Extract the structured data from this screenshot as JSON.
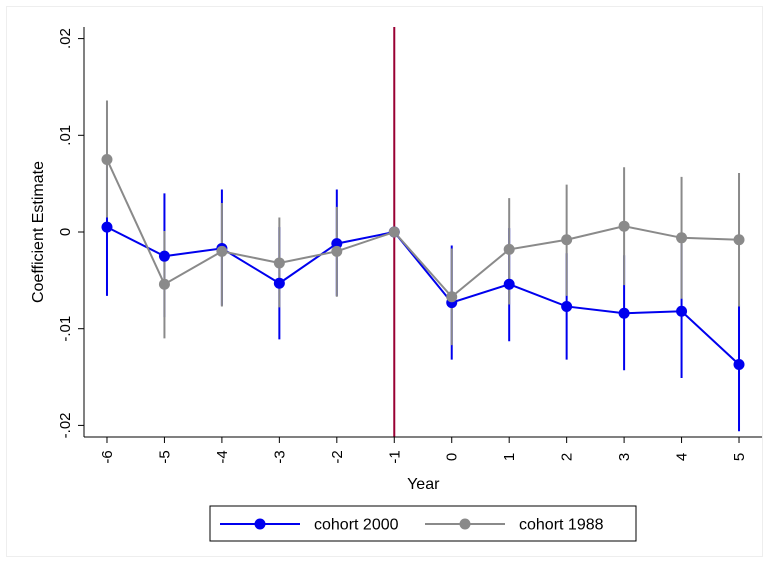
{
  "chart_data": {
    "type": "line",
    "xlabel": "Year",
    "ylabel": "Coefficient Estimate",
    "x": [
      -6,
      -5,
      -4,
      -3,
      -2,
      -1,
      0,
      1,
      2,
      3,
      4,
      5
    ],
    "x_tick_labels": [
      "-6",
      "-5",
      "-4",
      "-3",
      "-2",
      "-1",
      "0",
      "1",
      "2",
      "3",
      "4",
      "5"
    ],
    "y_ticks": [
      -0.02,
      -0.01,
      0,
      0.01,
      0.02
    ],
    "y_tick_labels": [
      "-.02",
      "-.01",
      "0",
      ".01",
      ".02"
    ],
    "xlim": [
      -6.4,
      5.4
    ],
    "ylim": [
      -0.0212,
      0.0212
    ],
    "reference_line": {
      "x": -1,
      "color": "#990033"
    },
    "grid": false,
    "legend_position": "bottom",
    "series": [
      {
        "name": "cohort 2000",
        "color": "#0000ee",
        "values": [
          0.0005,
          -0.0025,
          -0.0017,
          -0.0053,
          -0.0012,
          0.0,
          -0.0073,
          -0.0054,
          -0.0077,
          -0.0084,
          -0.0082,
          -0.0137
        ],
        "ci_low": [
          -0.0066,
          -0.0088,
          -0.0076,
          -0.0111,
          -0.0066,
          0.0,
          -0.0132,
          -0.0113,
          -0.0132,
          -0.0143,
          -0.0151,
          -0.0206
        ],
        "ci_high": [
          0.0073,
          0.004,
          0.0044,
          0.0005,
          0.0044,
          0.0,
          -0.0014,
          0.0004,
          -0.0022,
          -0.0024,
          -0.0012,
          -0.0075
        ]
      },
      {
        "name": "cohort 1988",
        "color": "#8a8a8a",
        "values": [
          0.0075,
          -0.0054,
          -0.002,
          -0.0032,
          -0.002,
          0.0,
          -0.0067,
          -0.0018,
          -0.0008,
          0.0006,
          -0.0006,
          -0.0008
        ],
        "ci_low": [
          0.0015,
          -0.011,
          -0.0077,
          -0.0078,
          -0.0067,
          0.0,
          -0.0117,
          -0.0075,
          -0.0066,
          -0.0055,
          -0.0069,
          -0.0077
        ],
        "ci_high": [
          0.0136,
          0.0001,
          0.003,
          0.0015,
          0.0026,
          0.0,
          -0.0017,
          0.0035,
          0.0049,
          0.0067,
          0.0057,
          0.0061
        ]
      }
    ]
  }
}
